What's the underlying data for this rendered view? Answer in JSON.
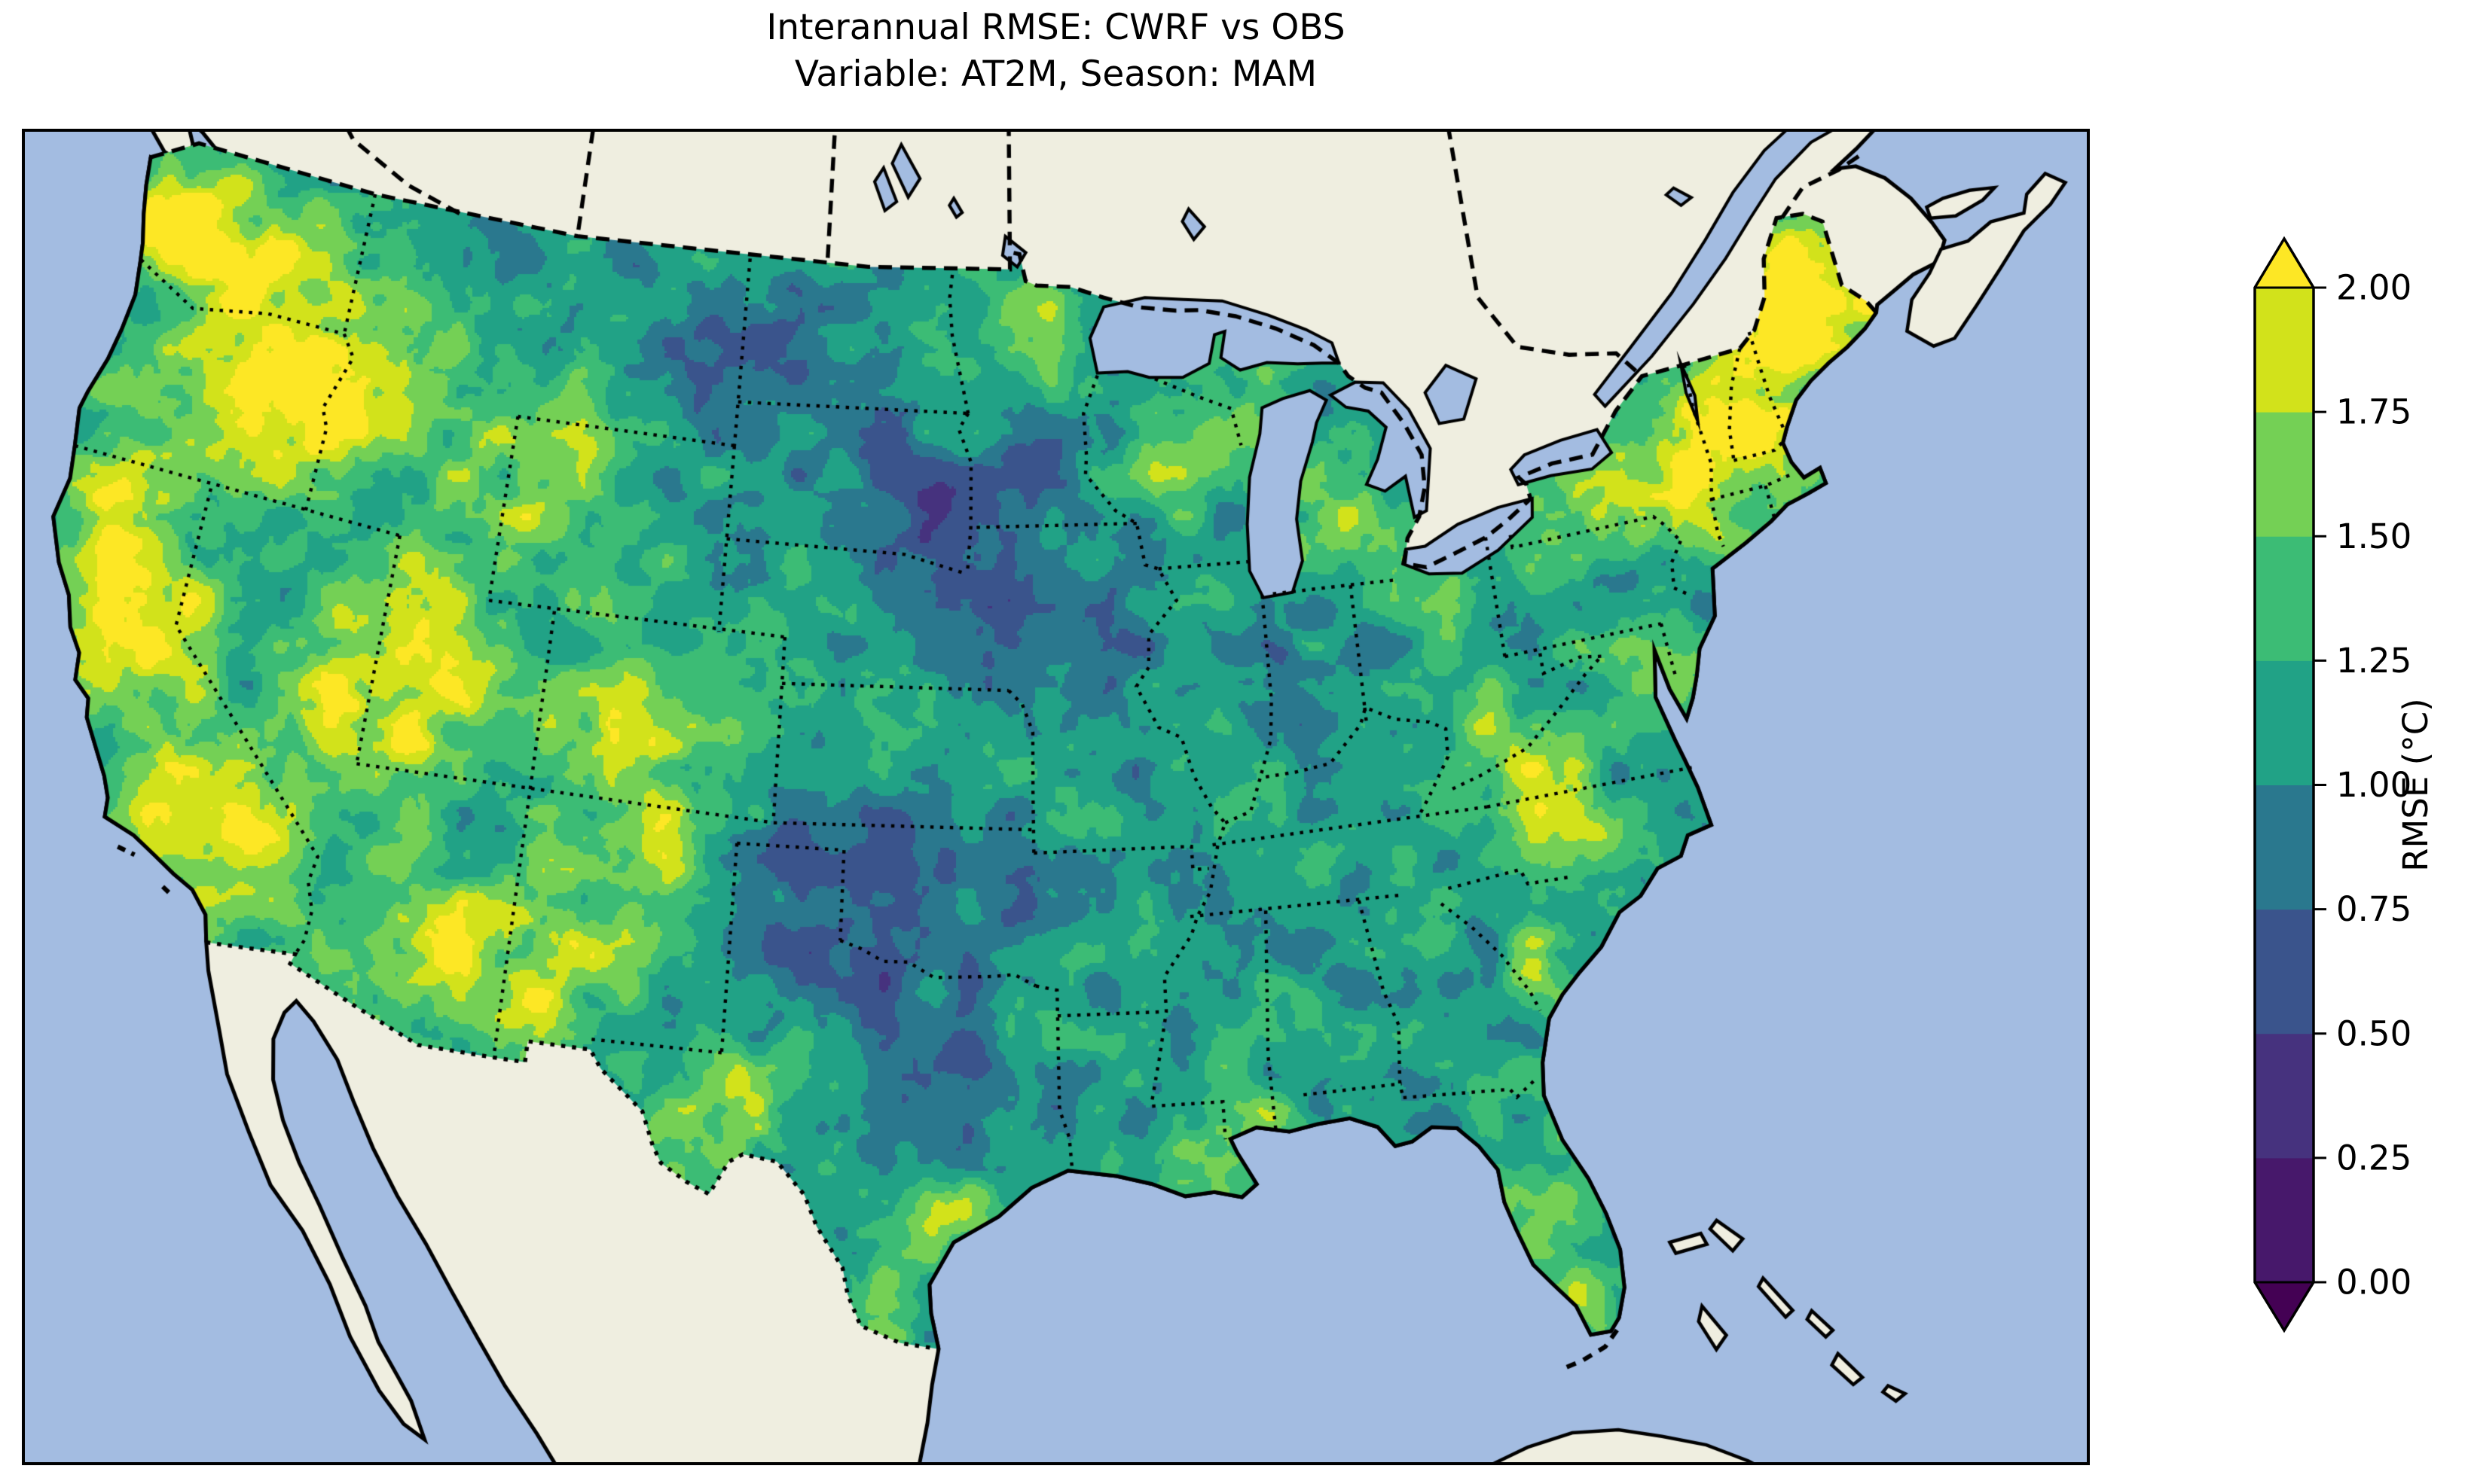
{
  "title": {
    "line1": "Interannual RMSE: CWRF vs OBS",
    "line2": "Variable: AT2M, Season: MAM"
  },
  "chart_data": {
    "type": "heatmap",
    "subtype": "filled-contour-map (matplotlib/cartopy style)",
    "title": "Interannual RMSE: CWRF vs OBS",
    "subtitle": "Variable: AT2M, Season: MAM",
    "metric": "Interannual RMSE",
    "comparison": "CWRF vs OBS",
    "variable": "AT2M",
    "season": "MAM",
    "units": "°C",
    "region": "Continental United States, with southern Canada, northern Mexico, Baja California, Great Lakes, Bahamas and Cuba visible; Pacific and Atlantic oceans surround",
    "projection": "Lambert Conformal Conic (approximate)",
    "colorbar": {
      "label": "RMSE (°C)",
      "orientation": "vertical, right side, extend arrows both ends",
      "ticks": [
        "2.00",
        "1.75",
        "1.50",
        "1.25",
        "1.00",
        "0.75",
        "0.50",
        "0.25",
        "0.00"
      ],
      "tick_values": [
        2.0,
        1.75,
        1.5,
        1.25,
        1.0,
        0.75,
        0.5,
        0.25,
        0.0
      ],
      "levels": [
        0.0,
        0.25,
        0.5,
        0.75,
        1.0,
        1.25,
        1.5,
        1.75,
        2.0
      ],
      "colormap": "viridis (8 discrete bins)",
      "extend": "both",
      "bin_colors_low_to_high": [
        "#47186b",
        "#46327e",
        "#3a548c",
        "#2a788e",
        "#21a286",
        "#3cbc75",
        "#74d055",
        "#d2e21b"
      ],
      "under_color": "#440154",
      "over_color": "#fde725"
    },
    "value_pattern": {
      "high_rmse_yellow_over_2": "Mountain West (Cascades, Sierra Nevada, Great Basin, Rockies), eastern Washington, southern Arizona, west Texas, New England / Northeast, patches along Gulf coast, south Texas and Florida",
      "low_rmse_dark_blue_0.5_0.75": "Oklahoma and northern Texas, scattered spots in central plains",
      "mid_rmse_teal_green_0.75_1.5": "Great Plains, Midwest, Southeast, Mid-Atlantic"
    },
    "map_colors": {
      "ocean": "#a3bce1",
      "non_us_land": "#efeee0",
      "coastline": "#000000",
      "national_border_style": "dashed",
      "state_border_style": "dotted"
    }
  }
}
